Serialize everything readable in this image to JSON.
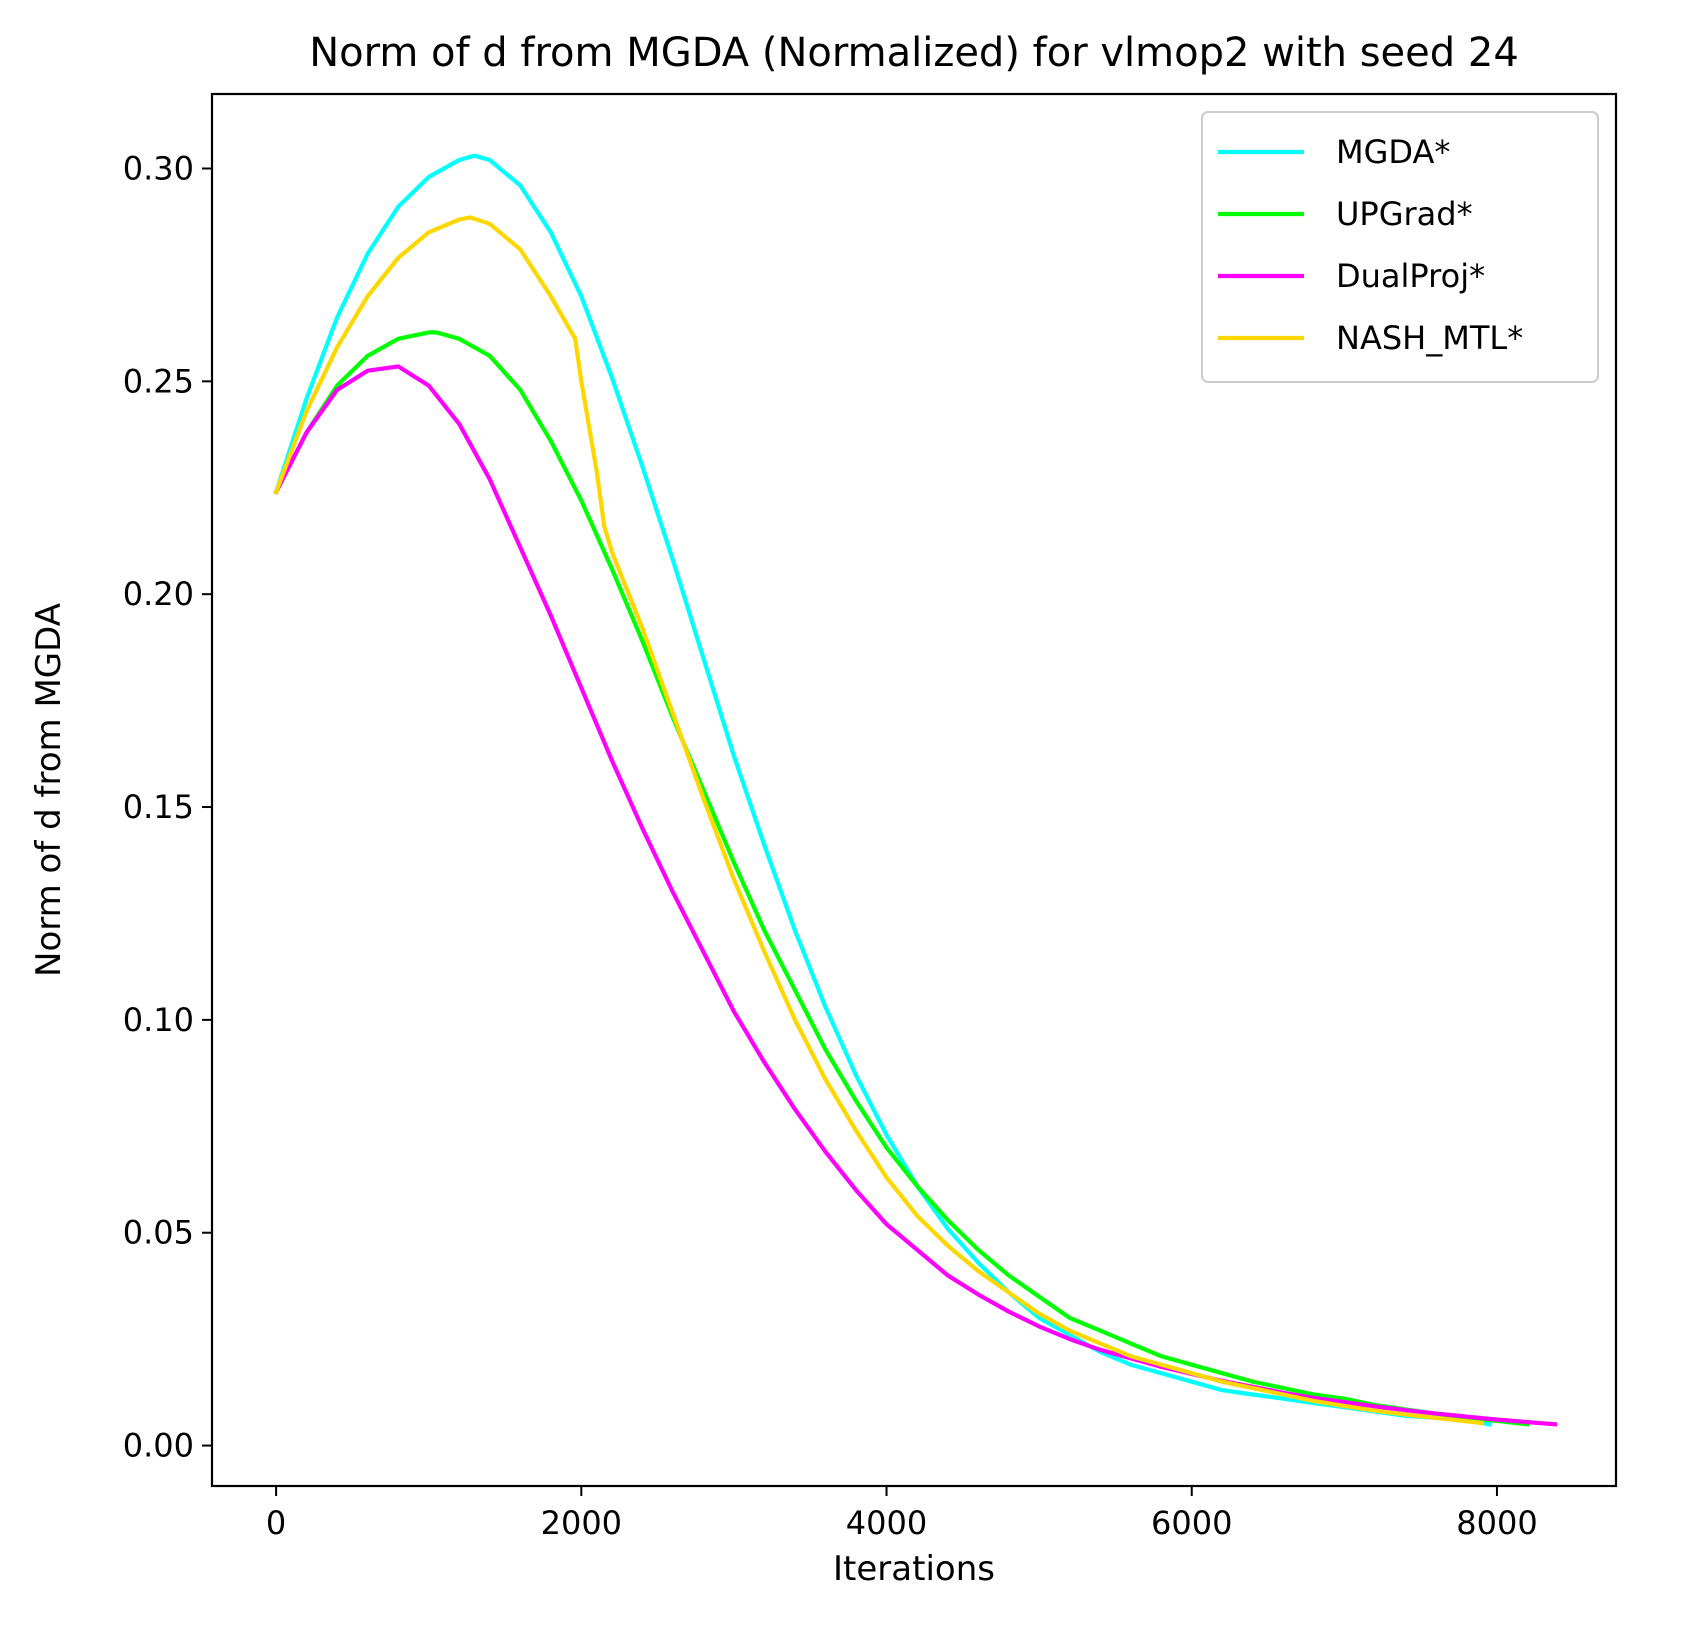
{
  "chart_data": {
    "type": "line",
    "title": "Norm of d from MGDA (Normalized) for vlmop2 with seed 24",
    "xlabel": "Iterations",
    "ylabel": "Norm of d from MGDA",
    "xlim": [
      -420,
      8780
    ],
    "ylim": [
      -0.0095,
      0.3175
    ],
    "xticks": [
      0,
      2000,
      4000,
      6000,
      8000
    ],
    "xtick_labels": [
      "0",
      "2000",
      "4000",
      "6000",
      "8000"
    ],
    "yticks": [
      0.0,
      0.05,
      0.1,
      0.15,
      0.2,
      0.25,
      0.3
    ],
    "ytick_labels": [
      "0.00",
      "0.05",
      "0.10",
      "0.15",
      "0.20",
      "0.25",
      "0.30"
    ],
    "grid": false,
    "legend_position": "top-right",
    "series": [
      {
        "name": "MGDA*",
        "color": "#00ffff",
        "x": [
          0,
          200,
          400,
          600,
          800,
          1000,
          1200,
          1300,
          1400,
          1600,
          1800,
          2000,
          2200,
          2400,
          2600,
          2800,
          3000,
          3200,
          3400,
          3600,
          3800,
          4000,
          4200,
          4400,
          4600,
          4800,
          5000,
          5200,
          5400,
          5600,
          5800,
          6000,
          6200,
          6400,
          6600,
          6800,
          7000,
          7200,
          7400,
          7600,
          7800,
          7950
        ],
        "y": [
          0.224,
          0.246,
          0.265,
          0.28,
          0.291,
          0.298,
          0.302,
          0.303,
          0.302,
          0.296,
          0.285,
          0.27,
          0.251,
          0.23,
          0.208,
          0.185,
          0.162,
          0.141,
          0.121,
          0.103,
          0.087,
          0.073,
          0.061,
          0.051,
          0.043,
          0.036,
          0.03,
          0.026,
          0.022,
          0.019,
          0.017,
          0.015,
          0.013,
          0.012,
          0.011,
          0.01,
          0.009,
          0.008,
          0.007,
          0.0065,
          0.006,
          0.005
        ]
      },
      {
        "name": "UPGrad*",
        "color": "#00ff00",
        "x": [
          0,
          200,
          400,
          600,
          800,
          1000,
          1050,
          1200,
          1400,
          1600,
          1800,
          2000,
          2200,
          2400,
          2600,
          2800,
          3000,
          3200,
          3400,
          3600,
          3800,
          4000,
          4200,
          4400,
          4600,
          4800,
          5000,
          5200,
          5400,
          5600,
          5800,
          6000,
          6200,
          6400,
          6600,
          6800,
          7000,
          7200,
          7400,
          7600,
          7800,
          8000,
          8200
        ],
        "y": [
          0.224,
          0.238,
          0.249,
          0.256,
          0.26,
          0.2615,
          0.2615,
          0.26,
          0.256,
          0.248,
          0.236,
          0.222,
          0.206,
          0.189,
          0.171,
          0.154,
          0.137,
          0.121,
          0.107,
          0.093,
          0.081,
          0.07,
          0.061,
          0.053,
          0.046,
          0.04,
          0.035,
          0.03,
          0.027,
          0.024,
          0.021,
          0.019,
          0.017,
          0.015,
          0.0135,
          0.012,
          0.011,
          0.0095,
          0.0085,
          0.0075,
          0.0065,
          0.0058,
          0.005
        ]
      },
      {
        "name": "DualProj*",
        "color": "#ff00ff",
        "x": [
          0,
          200,
          400,
          600,
          800,
          1000,
          1200,
          1400,
          1600,
          1800,
          2000,
          2200,
          2400,
          2600,
          2800,
          3000,
          3200,
          3400,
          3600,
          3800,
          4000,
          4200,
          4400,
          4600,
          4800,
          5000,
          5200,
          5400,
          5600,
          5800,
          6000,
          6200,
          6400,
          6600,
          6800,
          7000,
          7200,
          7400,
          7600,
          7800,
          8000,
          8200,
          8380
        ],
        "y": [
          0.224,
          0.238,
          0.248,
          0.2525,
          0.2535,
          0.249,
          0.24,
          0.227,
          0.211,
          0.195,
          0.178,
          0.161,
          0.145,
          0.13,
          0.116,
          0.102,
          0.09,
          0.079,
          0.069,
          0.06,
          0.052,
          0.046,
          0.04,
          0.0355,
          0.0315,
          0.028,
          0.025,
          0.0225,
          0.0205,
          0.0185,
          0.0168,
          0.0152,
          0.0138,
          0.0124,
          0.0112,
          0.0102,
          0.0092,
          0.0083,
          0.0075,
          0.0068,
          0.0061,
          0.0055,
          0.005
        ]
      },
      {
        "name": "NASH_MTL*",
        "color": "#ffd700",
        "x": [
          0,
          200,
          400,
          600,
          800,
          1000,
          1200,
          1270,
          1400,
          1600,
          1800,
          1960,
          2000,
          2100,
          2150,
          2200,
          2400,
          2600,
          2800,
          3000,
          3200,
          3400,
          3600,
          3800,
          4000,
          4200,
          4400,
          4600,
          4800,
          5000,
          5200,
          5400,
          5600,
          5800,
          6000,
          6200,
          6400,
          6600,
          6800,
          7000,
          7200,
          7400,
          7600,
          7800,
          7900
        ],
        "y": [
          0.224,
          0.243,
          0.258,
          0.27,
          0.279,
          0.285,
          0.288,
          0.2885,
          0.287,
          0.281,
          0.27,
          0.26,
          0.25,
          0.229,
          0.216,
          0.21,
          0.192,
          0.172,
          0.152,
          0.133,
          0.116,
          0.1,
          0.086,
          0.074,
          0.063,
          0.054,
          0.047,
          0.041,
          0.036,
          0.031,
          0.027,
          0.024,
          0.021,
          0.019,
          0.017,
          0.015,
          0.0135,
          0.012,
          0.0105,
          0.0093,
          0.0082,
          0.0073,
          0.0065,
          0.0057,
          0.0053
        ]
      }
    ]
  }
}
